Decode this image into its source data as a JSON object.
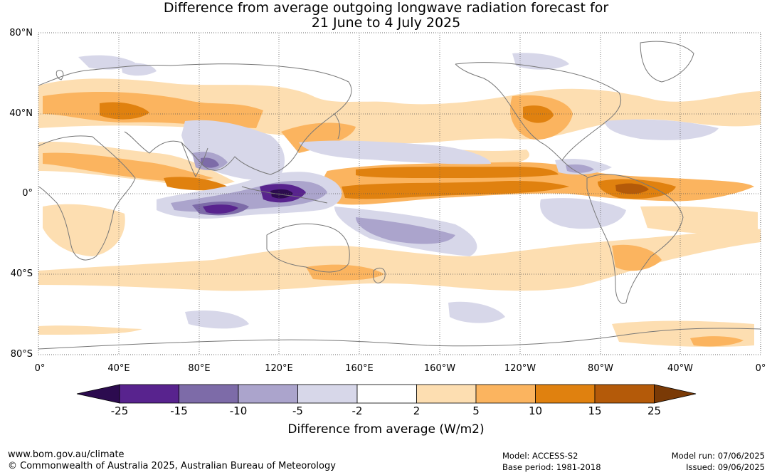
{
  "title": {
    "line1": "Difference from average outgoing longwave radiation forecast for",
    "line2": "21 June to 4 July 2025"
  },
  "axes": {
    "lat_labels": [
      "80°N",
      "40°N",
      "0°",
      "40°S",
      "80°S"
    ],
    "lon_labels": [
      "0°",
      "40°E",
      "80°E",
      "120°E",
      "160°E",
      "160°W",
      "120°W",
      "80°W",
      "40°W",
      "0°"
    ]
  },
  "colorbar": {
    "title": "Difference from average (W/m2)",
    "tick_labels": [
      "-25",
      "-15",
      "-10",
      "-5",
      "-2",
      "2",
      "5",
      "10",
      "15",
      "25"
    ],
    "colors": [
      "#2c0b4f",
      "#58238e",
      "#7d6ba8",
      "#aba4cc",
      "#d7d7e9",
      "#ffffff",
      "#fddeb1",
      "#fbb45f",
      "#e0810f",
      "#b45a09",
      "#7a3a06"
    ]
  },
  "footer": {
    "website": "www.bom.gov.au/climate",
    "copyright": "© Commonwealth of Australia 2025, Australian Bureau of Meteorology",
    "model": "Model: ACCESS-S2",
    "base_period": "Base period: 1981-2018",
    "model_run": "Model run: 07/06/2025",
    "issued": "Issued: 09/06/2025"
  }
}
